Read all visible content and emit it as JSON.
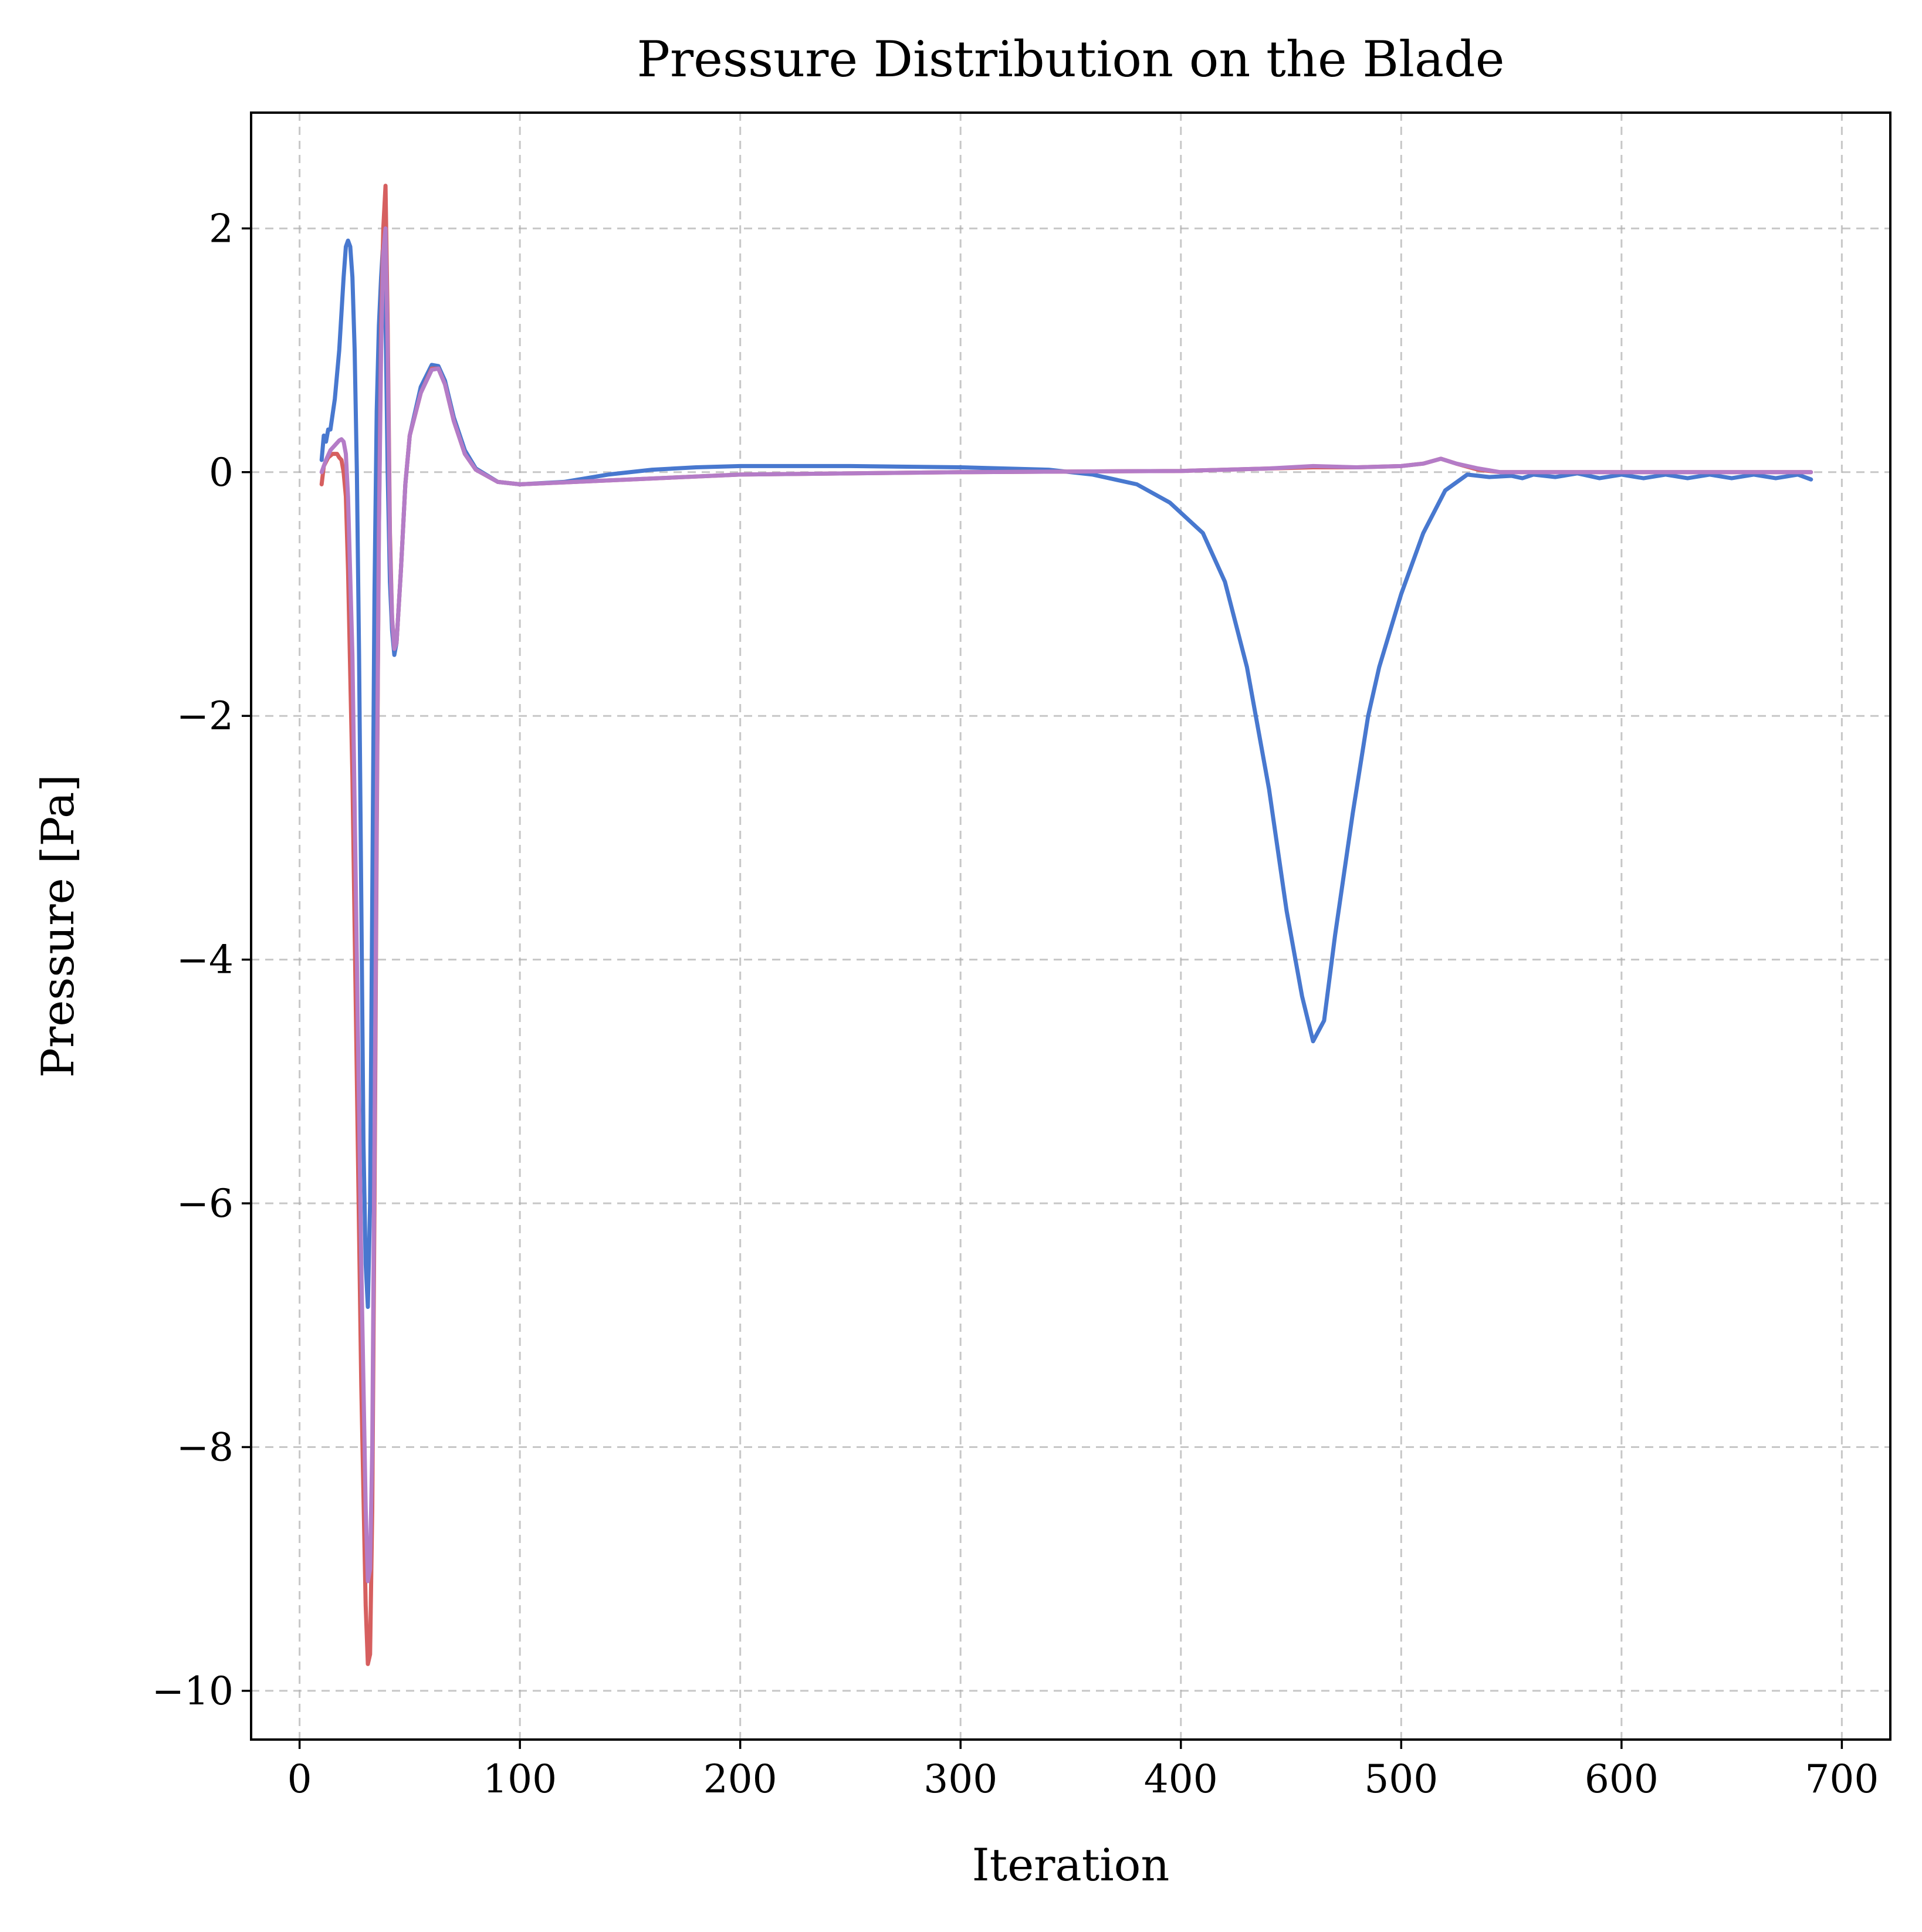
{
  "chart_data": {
    "type": "line",
    "title": "Pressure Distribution on the Blade",
    "xlabel": "Iteration",
    "ylabel": "Pressure [Pa]",
    "xlim": [
      -22,
      722
    ],
    "ylim": [
      -10.4,
      2.95
    ],
    "xticks": [
      0,
      100,
      200,
      300,
      400,
      500,
      600,
      700
    ],
    "xtick_labels": [
      "0",
      "100",
      "200",
      "300",
      "400",
      "500",
      "600",
      "700"
    ],
    "yticks": [
      2,
      0,
      -2,
      -4,
      -6,
      -8,
      -10
    ],
    "ytick_labels": [
      "2",
      "0",
      "−2",
      "−4",
      "−6",
      "−8",
      "−10"
    ],
    "grid": true,
    "legend": "none",
    "series": [
      {
        "color": "#4878cf",
        "points": [
          [
            10,
            0.1
          ],
          [
            11,
            0.3
          ],
          [
            12,
            0.25
          ],
          [
            13,
            0.35
          ],
          [
            14,
            0.35
          ],
          [
            16,
            0.6
          ],
          [
            18,
            1.0
          ],
          [
            20,
            1.6
          ],
          [
            21,
            1.85
          ],
          [
            22,
            1.9
          ],
          [
            23,
            1.85
          ],
          [
            24,
            1.6
          ],
          [
            25,
            1.0
          ],
          [
            26,
            0.0
          ],
          [
            27,
            -1.5
          ],
          [
            28,
            -3.5
          ],
          [
            29,
            -5.5
          ],
          [
            30,
            -6.5
          ],
          [
            31,
            -6.85
          ],
          [
            32,
            -6.0
          ],
          [
            33,
            -3.5
          ],
          [
            34,
            -1.0
          ],
          [
            35,
            0.5
          ],
          [
            36,
            1.2
          ],
          [
            37,
            1.6
          ],
          [
            38,
            1.9
          ],
          [
            39,
            1.3
          ],
          [
            40,
            0.0
          ],
          [
            41,
            -0.9
          ],
          [
            42,
            -1.3
          ],
          [
            43,
            -1.5
          ],
          [
            44,
            -1.4
          ],
          [
            46,
            -0.8
          ],
          [
            48,
            -0.1
          ],
          [
            50,
            0.3
          ],
          [
            55,
            0.7
          ],
          [
            60,
            0.88
          ],
          [
            63,
            0.87
          ],
          [
            66,
            0.75
          ],
          [
            70,
            0.45
          ],
          [
            75,
            0.18
          ],
          [
            80,
            0.03
          ],
          [
            90,
            -0.08
          ],
          [
            100,
            -0.1
          ],
          [
            120,
            -0.08
          ],
          [
            140,
            -0.02
          ],
          [
            160,
            0.02
          ],
          [
            180,
            0.04
          ],
          [
            200,
            0.05
          ],
          [
            250,
            0.05
          ],
          [
            300,
            0.04
          ],
          [
            340,
            0.02
          ],
          [
            360,
            -0.02
          ],
          [
            380,
            -0.1
          ],
          [
            395,
            -0.25
          ],
          [
            410,
            -0.5
          ],
          [
            420,
            -0.9
          ],
          [
            430,
            -1.6
          ],
          [
            440,
            -2.6
          ],
          [
            448,
            -3.6
          ],
          [
            455,
            -4.3
          ],
          [
            460,
            -4.67
          ],
          [
            465,
            -4.5
          ],
          [
            470,
            -3.8
          ],
          [
            478,
            -2.8
          ],
          [
            485,
            -2.0
          ],
          [
            490,
            -1.6
          ],
          [
            495,
            -1.3
          ],
          [
            500,
            -1.0
          ],
          [
            510,
            -0.5
          ],
          [
            520,
            -0.15
          ],
          [
            530,
            -0.02
          ],
          [
            540,
            -0.04
          ],
          [
            550,
            -0.03
          ],
          [
            555,
            -0.05
          ],
          [
            560,
            -0.02
          ],
          [
            570,
            -0.04
          ],
          [
            580,
            -0.01
          ],
          [
            590,
            -0.05
          ],
          [
            600,
            -0.02
          ],
          [
            610,
            -0.05
          ],
          [
            620,
            -0.02
          ],
          [
            630,
            -0.05
          ],
          [
            640,
            -0.02
          ],
          [
            650,
            -0.05
          ],
          [
            660,
            -0.02
          ],
          [
            670,
            -0.05
          ],
          [
            680,
            -0.02
          ],
          [
            686,
            -0.06
          ]
        ]
      },
      {
        "color": "#d65f5f",
        "points": [
          [
            10,
            -0.1
          ],
          [
            11,
            0.05
          ],
          [
            13,
            0.12
          ],
          [
            15,
            0.15
          ],
          [
            17,
            0.15
          ],
          [
            18,
            0.12
          ],
          [
            19,
            0.1
          ],
          [
            20,
            0.0
          ],
          [
            21,
            -0.2
          ],
          [
            22,
            -0.8
          ],
          [
            24,
            -2.5
          ],
          [
            26,
            -5.0
          ],
          [
            28,
            -7.5
          ],
          [
            30,
            -9.3
          ],
          [
            31,
            -9.78
          ],
          [
            32,
            -9.7
          ],
          [
            33,
            -8.5
          ],
          [
            34,
            -6.0
          ],
          [
            35,
            -3.0
          ],
          [
            36,
            -0.5
          ],
          [
            37,
            1.2
          ],
          [
            38,
            2.0
          ],
          [
            39,
            2.35
          ],
          [
            40,
            1.2
          ],
          [
            41,
            -0.5
          ],
          [
            42,
            -1.2
          ],
          [
            43,
            -1.45
          ],
          [
            44,
            -1.4
          ],
          [
            46,
            -0.8
          ],
          [
            48,
            -0.1
          ],
          [
            50,
            0.3
          ],
          [
            55,
            0.65
          ],
          [
            60,
            0.85
          ],
          [
            63,
            0.85
          ],
          [
            66,
            0.72
          ],
          [
            70,
            0.42
          ],
          [
            75,
            0.15
          ],
          [
            80,
            0.02
          ],
          [
            90,
            -0.08
          ],
          [
            100,
            -0.1
          ],
          [
            150,
            -0.06
          ],
          [
            200,
            -0.02
          ],
          [
            300,
            0.0
          ],
          [
            400,
            0.01
          ],
          [
            440,
            0.03
          ],
          [
            460,
            0.04
          ],
          [
            480,
            0.04
          ],
          [
            500,
            0.05
          ],
          [
            510,
            0.07
          ],
          [
            518,
            0.11
          ],
          [
            525,
            0.07
          ],
          [
            535,
            0.02
          ],
          [
            545,
            0.0
          ],
          [
            600,
            0.0
          ],
          [
            686,
            0.0
          ]
        ]
      },
      {
        "color": "#b47cc7",
        "points": [
          [
            10,
            0.0
          ],
          [
            12,
            0.1
          ],
          [
            14,
            0.18
          ],
          [
            16,
            0.22
          ],
          [
            18,
            0.26
          ],
          [
            19,
            0.27
          ],
          [
            20,
            0.25
          ],
          [
            21,
            0.15
          ],
          [
            22,
            -0.2
          ],
          [
            24,
            -1.5
          ],
          [
            26,
            -4.0
          ],
          [
            28,
            -6.5
          ],
          [
            30,
            -8.5
          ],
          [
            31,
            -9.1
          ],
          [
            32,
            -9.0
          ],
          [
            33,
            -8.0
          ],
          [
            34,
            -5.5
          ],
          [
            35,
            -2.8
          ],
          [
            36,
            -0.5
          ],
          [
            37,
            1.0
          ],
          [
            38,
            1.8
          ],
          [
            39,
            2.0
          ],
          [
            40,
            1.0
          ],
          [
            41,
            -0.6
          ],
          [
            42,
            -1.2
          ],
          [
            43,
            -1.45
          ],
          [
            44,
            -1.4
          ],
          [
            46,
            -0.8
          ],
          [
            48,
            -0.1
          ],
          [
            50,
            0.3
          ],
          [
            55,
            0.65
          ],
          [
            60,
            0.84
          ],
          [
            63,
            0.85
          ],
          [
            66,
            0.72
          ],
          [
            70,
            0.42
          ],
          [
            75,
            0.15
          ],
          [
            80,
            0.02
          ],
          [
            90,
            -0.08
          ],
          [
            100,
            -0.1
          ],
          [
            150,
            -0.06
          ],
          [
            200,
            -0.02
          ],
          [
            300,
            0.0
          ],
          [
            400,
            0.01
          ],
          [
            440,
            0.03
          ],
          [
            460,
            0.05
          ],
          [
            480,
            0.04
          ],
          [
            500,
            0.05
          ],
          [
            510,
            0.07
          ],
          [
            518,
            0.11
          ],
          [
            525,
            0.07
          ],
          [
            535,
            0.03
          ],
          [
            545,
            0.0
          ],
          [
            600,
            0.0
          ],
          [
            686,
            0.0
          ]
        ]
      }
    ]
  }
}
